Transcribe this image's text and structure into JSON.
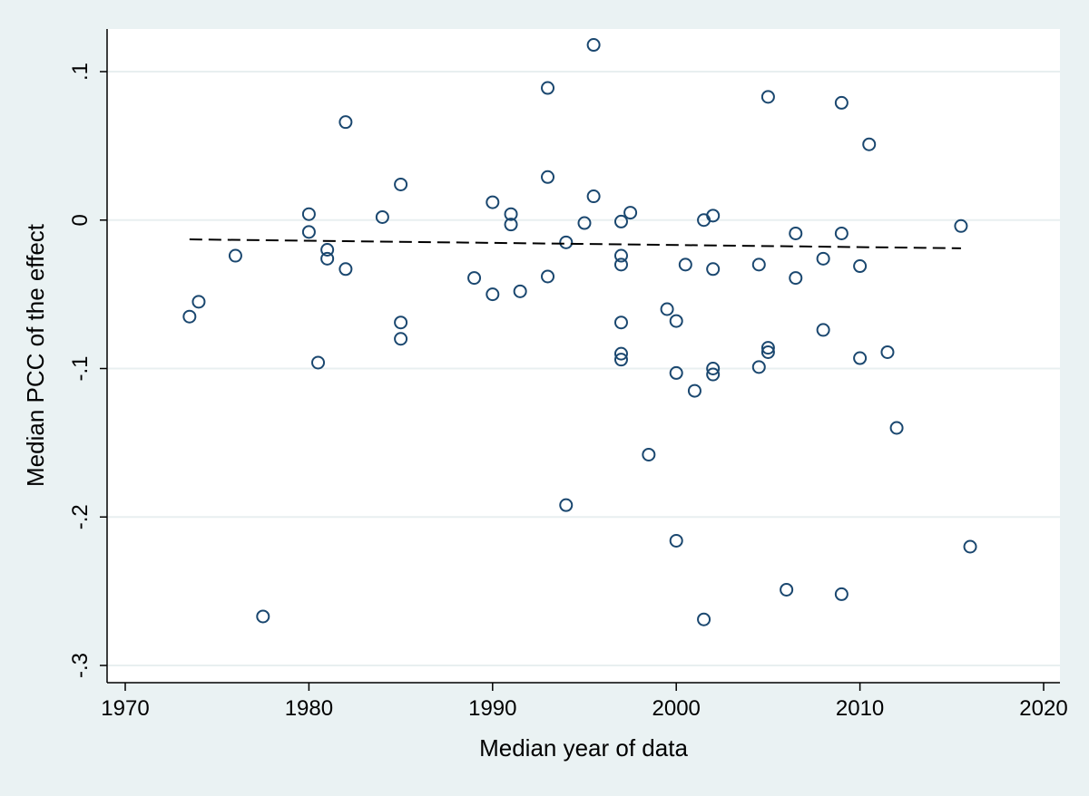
{
  "chart_data": {
    "type": "scatter",
    "title": "",
    "xlabel": "Median year of data",
    "ylabel": "Median PCC of the effect",
    "xlim": [
      1970,
      2020
    ],
    "ylim": [
      -0.3,
      0.1
    ],
    "x_ticks": [
      1970,
      1980,
      1990,
      2000,
      2010,
      2020
    ],
    "x_tick_labels": [
      "1970",
      "1980",
      "1990",
      "2000",
      "2010",
      "2020"
    ],
    "y_ticks": [
      -0.3,
      -0.2,
      -0.1,
      0,
      0.1
    ],
    "y_tick_labels": [
      "-.3",
      "-.2",
      "-.1",
      "0",
      ".1"
    ],
    "grid": "horizontal",
    "legend": "none",
    "colors": {
      "background": "#eaf2f3",
      "plot_background": "#ffffff",
      "gridline": "#e8eff0",
      "marker": "#1a476f",
      "fit_line": "#000000"
    },
    "series": [
      {
        "marker": "hollow-circle",
        "points": [
          [
            1973.5,
            -0.065
          ],
          [
            1974,
            -0.055
          ],
          [
            1976,
            -0.024
          ],
          [
            1977.5,
            -0.267
          ],
          [
            1980,
            0.004
          ],
          [
            1980,
            -0.008
          ],
          [
            1980.5,
            -0.096
          ],
          [
            1981,
            -0.02
          ],
          [
            1981,
            -0.026
          ],
          [
            1982,
            0.066
          ],
          [
            1982,
            -0.033
          ],
          [
            1984,
            0.002
          ],
          [
            1985,
            0.024
          ],
          [
            1985,
            -0.069
          ],
          [
            1985,
            -0.08
          ],
          [
            1989,
            -0.039
          ],
          [
            1990,
            0.012
          ],
          [
            1990,
            -0.05
          ],
          [
            1991,
            0.004
          ],
          [
            1991,
            -0.003
          ],
          [
            1991.5,
            -0.048
          ],
          [
            1993,
            0.089
          ],
          [
            1993,
            0.029
          ],
          [
            1993,
            -0.038
          ],
          [
            1994,
            -0.015
          ],
          [
            1994,
            -0.192
          ],
          [
            1995,
            -0.002
          ],
          [
            1995.5,
            0.118
          ],
          [
            1995.5,
            0.016
          ],
          [
            1997,
            -0.001
          ],
          [
            1997,
            -0.024
          ],
          [
            1997,
            -0.03
          ],
          [
            1997,
            -0.069
          ],
          [
            1997,
            -0.09
          ],
          [
            1997,
            -0.094
          ],
          [
            1997.5,
            0.005
          ],
          [
            1998.5,
            -0.158
          ],
          [
            1999.5,
            -0.06
          ],
          [
            2000,
            -0.068
          ],
          [
            2000,
            -0.103
          ],
          [
            2000,
            -0.216
          ],
          [
            2000.5,
            -0.03
          ],
          [
            2001,
            -0.115
          ],
          [
            2001.5,
            0.0
          ],
          [
            2001.5,
            -0.269
          ],
          [
            2002,
            0.003
          ],
          [
            2002,
            -0.033
          ],
          [
            2002,
            -0.1
          ],
          [
            2002,
            -0.104
          ],
          [
            2004.5,
            -0.03
          ],
          [
            2004.5,
            -0.099
          ],
          [
            2005,
            0.083
          ],
          [
            2005,
            -0.086
          ],
          [
            2005,
            -0.089
          ],
          [
            2006,
            -0.249
          ],
          [
            2006.5,
            -0.009
          ],
          [
            2006.5,
            -0.039
          ],
          [
            2008,
            -0.026
          ],
          [
            2008,
            -0.074
          ],
          [
            2009,
            0.079
          ],
          [
            2009,
            -0.009
          ],
          [
            2009,
            -0.252
          ],
          [
            2010,
            -0.031
          ],
          [
            2010,
            -0.093
          ],
          [
            2010.5,
            0.051
          ],
          [
            2011.5,
            -0.089
          ],
          [
            2012,
            -0.14
          ],
          [
            2015.5,
            -0.004
          ],
          [
            2016,
            -0.22
          ]
        ]
      }
    ],
    "fit_line": {
      "style": "dashed",
      "x": [
        1973.5,
        2015.5
      ],
      "y": [
        -0.013,
        -0.019
      ]
    }
  }
}
